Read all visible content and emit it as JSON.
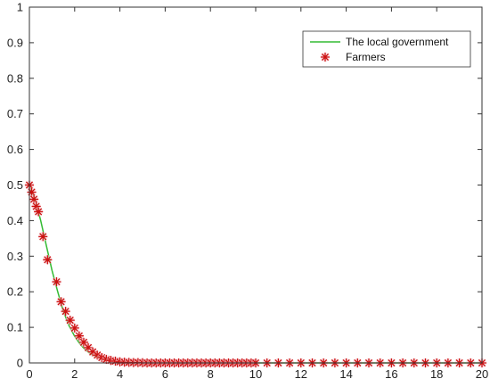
{
  "chart_data": {
    "type": "line",
    "title": "",
    "xlabel": "",
    "ylabel": "",
    "xlim": [
      0,
      20
    ],
    "ylim": [
      0,
      1
    ],
    "xticks": [
      0,
      2,
      4,
      6,
      8,
      10,
      12,
      14,
      16,
      18,
      20
    ],
    "yticks": [
      0,
      0.1,
      0.2,
      0.3,
      0.4,
      0.5,
      0.6,
      0.7,
      0.8,
      0.9,
      1
    ],
    "grid": false,
    "legend_position": "top-right",
    "series": [
      {
        "name": "The local government",
        "style": "solid line",
        "color": "#33bb33",
        "x": [
          0,
          0.25,
          0.5,
          0.75,
          1,
          1.25,
          1.5,
          1.75,
          2,
          2.25,
          2.5,
          2.75,
          3,
          3.25,
          3.5,
          3.75,
          4,
          4.5,
          5,
          6,
          8,
          10,
          12,
          14,
          16,
          18,
          20
        ],
        "y": [
          0.5,
          0.46,
          0.4,
          0.33,
          0.26,
          0.2,
          0.145,
          0.105,
          0.075,
          0.052,
          0.035,
          0.024,
          0.016,
          0.011,
          0.007,
          0.005,
          0.003,
          0.0015,
          0.0007,
          0.0002,
          0,
          0,
          0,
          0,
          0,
          0,
          0
        ]
      },
      {
        "name": "Farmers",
        "style": "asterisk markers",
        "color": "#cc1111",
        "x": [
          0,
          0.1,
          0.2,
          0.3,
          0.4,
          0.6,
          0.8,
          1.2,
          1.4,
          1.6,
          1.8,
          2.0,
          2.2,
          2.4,
          2.6,
          2.8,
          3.0,
          3.2,
          3.4,
          3.6,
          3.8,
          4.0,
          4.2,
          4.4,
          4.6,
          4.8,
          5.0,
          5.2,
          5.4,
          5.6,
          5.8,
          6.0,
          6.2,
          6.4,
          6.6,
          6.8,
          7.0,
          7.2,
          7.4,
          7.6,
          7.8,
          8.0,
          8.2,
          8.4,
          8.6,
          8.8,
          9.0,
          9.2,
          9.4,
          9.6,
          9.8,
          10,
          10.5,
          11,
          11.5,
          12,
          12.5,
          13,
          13.5,
          14,
          14.5,
          15,
          15.5,
          16,
          16.5,
          17,
          17.5,
          18,
          18.5,
          19,
          19.5,
          20
        ],
        "y": [
          0.5,
          0.48,
          0.46,
          0.44,
          0.425,
          0.355,
          0.29,
          0.228,
          0.172,
          0.145,
          0.12,
          0.098,
          0.076,
          0.058,
          0.043,
          0.031,
          0.022,
          0.015,
          0.01,
          0.007,
          0.005,
          0.003,
          0.002,
          0.0015,
          0.001,
          0.001,
          0.0005,
          0,
          0,
          0,
          0,
          0,
          0,
          0,
          0,
          0,
          0,
          0,
          0,
          0,
          0,
          0,
          0,
          0,
          0,
          0,
          0,
          0,
          0,
          0,
          0,
          0,
          0,
          0,
          0,
          0,
          0,
          0,
          0,
          0,
          0,
          0,
          0,
          0,
          0,
          0,
          0,
          0,
          0,
          0,
          0,
          0
        ]
      }
    ]
  }
}
